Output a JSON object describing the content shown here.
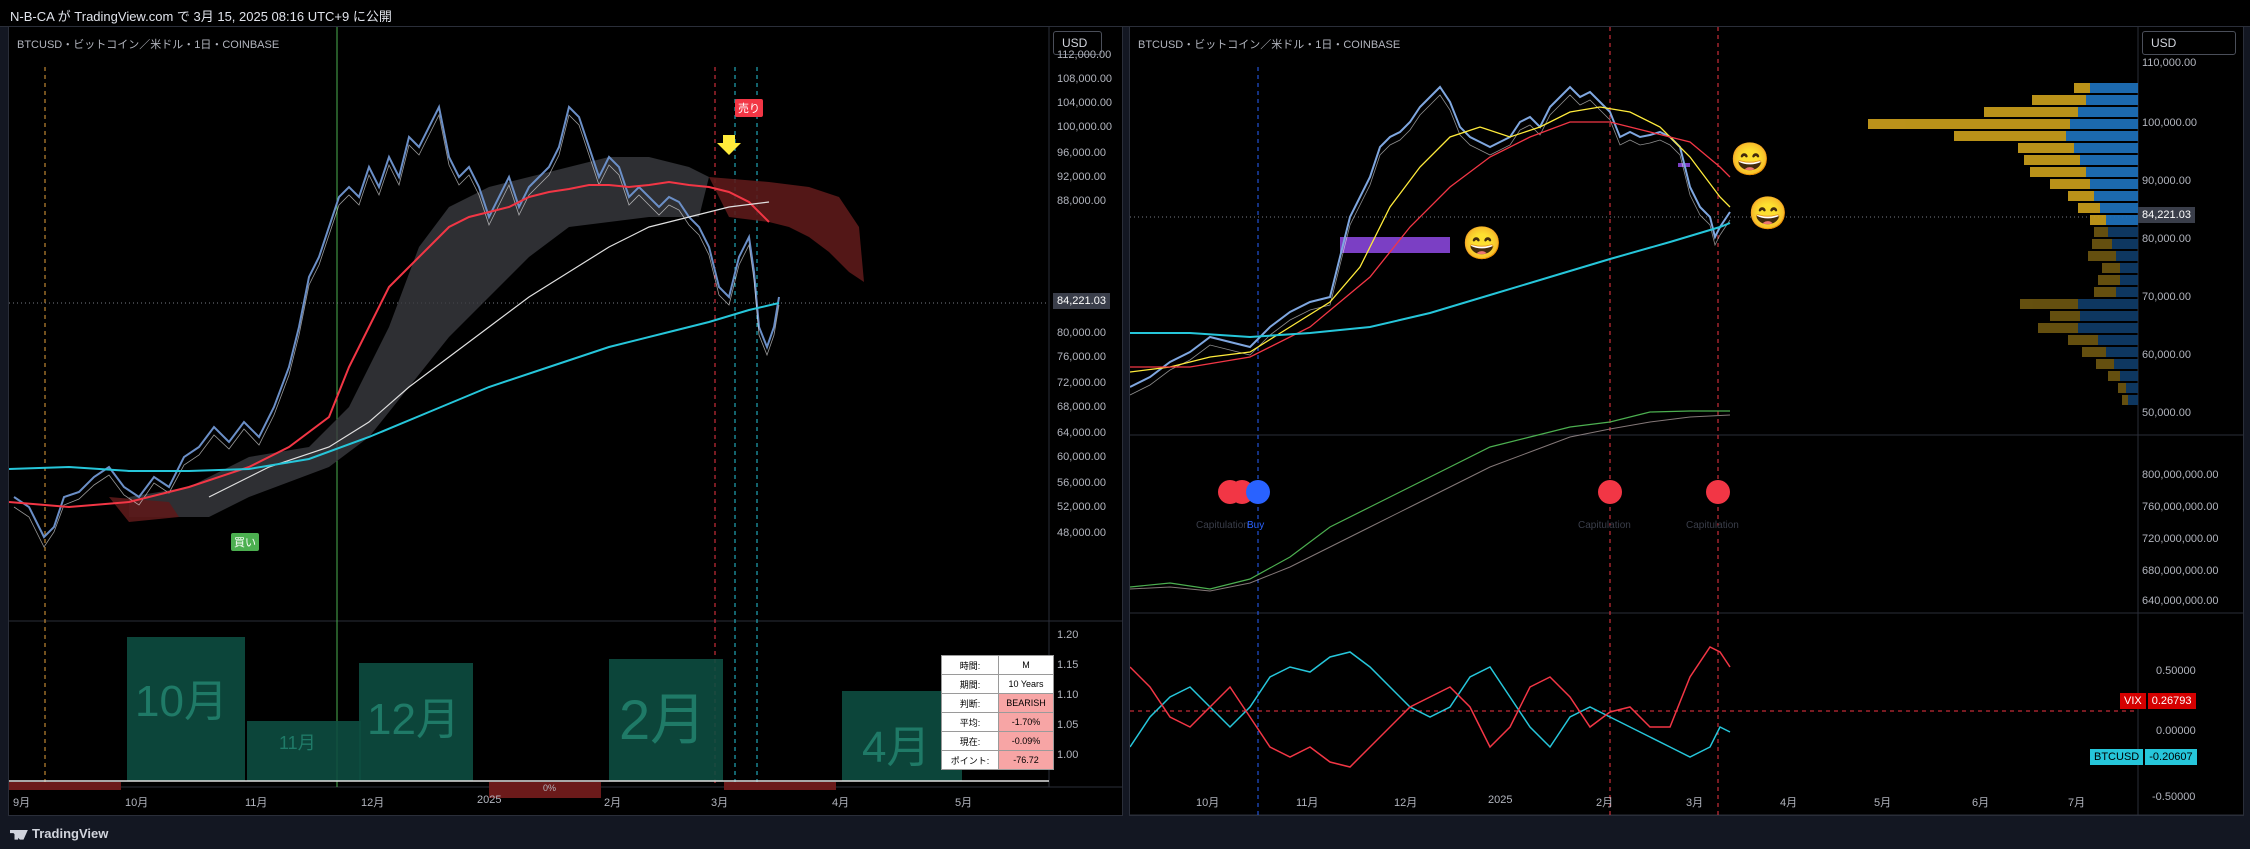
{
  "header": {
    "published": "N-B-CA が TradingView.com で 3月 15, 2025 08:16 UTC+9 に公開"
  },
  "footer": {
    "brand": "TradingView",
    "logo_icon": "tradingview-logo-icon"
  },
  "left": {
    "title": "BTCUSD・ビットコイン／米ドル・1日・COINBASE",
    "currency_button": "USD",
    "price_ticks": [
      "112,000.00",
      "108,000.00",
      "104,000.00",
      "100,000.00",
      "96,000.00",
      "92,000.00",
      "88,000.00",
      "84,000.00",
      "80,000.00",
      "76,000.00",
      "72,000.00",
      "68,000.00",
      "64,000.00",
      "60,000.00",
      "56,000.00",
      "52,000.00",
      "48,000.00"
    ],
    "current_price": "84,221.03",
    "sell_label": "売り",
    "buy_label": "買い",
    "lower_ticks": [
      "1.20",
      "1.15",
      "1.10",
      "1.05",
      "1.00"
    ],
    "month_boxes": [
      "10月",
      "11月",
      "12月",
      "2月",
      "4月"
    ],
    "bar_label": "0%",
    "xaxis": [
      "9月",
      "10月",
      "11月",
      "12月",
      "2025",
      "2月",
      "3月",
      "4月",
      "5月"
    ],
    "stats": [
      {
        "k": "時間:",
        "v": "M"
      },
      {
        "k": "期間:",
        "v": "10 Years"
      },
      {
        "k": "判断:",
        "v": "BEARISH"
      },
      {
        "k": "平均:",
        "v": "-1.70%"
      },
      {
        "k": "現在:",
        "v": "-0.09%"
      },
      {
        "k": "ポイント:",
        "v": "-76.72"
      }
    ],
    "colors": {
      "sell": "#f23645",
      "buy": "#4caf50",
      "ema_red": "#f23645",
      "sma_cyan": "#26c6da",
      "marker": "#ffeb3b"
    }
  },
  "right": {
    "title": "BTCUSD・ビットコイン／米ドル・1日・COINBASE",
    "currency_button": "USD",
    "price_ticks": [
      "110,000.00",
      "100,000.00",
      "90,000.00",
      "80,000.00",
      "70,000.00",
      "60,000.00",
      "50,000.00"
    ],
    "current_price": "84,221.03",
    "mid_ticks": [
      "800,000,000.00",
      "760,000,000.00",
      "720,000,000.00",
      "680,000,000.00",
      "640,000,000.00"
    ],
    "low_ticks": [
      "0.50000",
      "0.00000",
      "-0.50000"
    ],
    "vix_label": "VIX",
    "vix_value": "0.26793",
    "btc_label": "BTCUSD",
    "btc_value": "-0.20607",
    "signal_labels": [
      "Capitulation",
      "Buy",
      "Capitulation",
      "Capitulation"
    ],
    "xaxis": [
      "10月",
      "11月",
      "12月",
      "2025",
      "2月",
      "3月",
      "4月",
      "5月",
      "6月",
      "7月"
    ],
    "emoji_icon": "grinning-face-icon",
    "colors": {
      "volume_up": "#1e6fb8",
      "volume_down": "#c59a1b",
      "signal_red": "#f23645",
      "signal_blue": "#2962ff"
    }
  }
}
